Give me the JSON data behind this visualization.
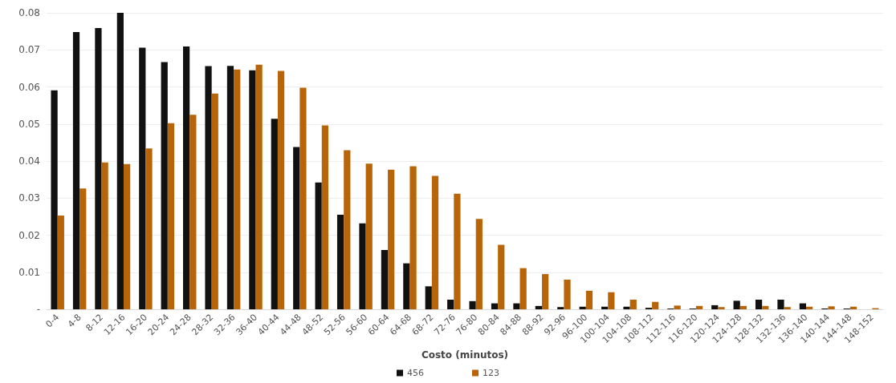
{
  "chart_data": {
    "type": "bar",
    "xlabel": "Costo (minutos)",
    "categories": [
      "0-4",
      "4-8",
      "8-12",
      "12-16",
      "16-20",
      "20-24",
      "24-28",
      "28-32",
      "32-36",
      "36-40",
      "40-44",
      "44-48",
      "48-52",
      "52-56",
      "56-60",
      "60-64",
      "64-68",
      "68-72",
      "72-76",
      "76-80",
      "80-84",
      "84-88",
      "88-92",
      "92-96",
      "96-100",
      "100-104",
      "104-108",
      "108-112",
      "112-116",
      "116-120",
      "120-124",
      "124-128",
      "128-132",
      "132-136",
      "136-140",
      "140-144",
      "144-148",
      "148-152"
    ],
    "series": [
      {
        "name": "456",
        "color": "#111111",
        "values": [
          0.0591,
          0.0748,
          0.0759,
          0.08,
          0.0706,
          0.0667,
          0.0709,
          0.0656,
          0.0657,
          0.0645,
          0.0514,
          0.0438,
          0.0342,
          0.0255,
          0.0232,
          0.016,
          0.0124,
          0.0062,
          0.0026,
          0.0022,
          0.0016,
          0.0016,
          0.0009,
          0.0006,
          0.0007,
          0.0007,
          0.0007,
          0.0004,
          0.0002,
          0.0002,
          0.0011,
          0.0023,
          0.0026,
          0.0026,
          0.0016,
          0.0002,
          0.0002,
          null
        ]
      },
      {
        "name": "123",
        "color": "#b8650a",
        "values": [
          0.0253,
          0.0326,
          0.0396,
          0.0392,
          0.0434,
          0.0502,
          0.0525,
          0.0582,
          0.0647,
          0.066,
          0.0643,
          0.0598,
          0.0496,
          0.0429,
          0.0393,
          0.0377,
          0.0386,
          0.036,
          0.0312,
          0.0244,
          0.0174,
          0.0111,
          0.0095,
          0.008,
          0.005,
          0.0046,
          0.0026,
          0.002,
          0.001,
          0.0009,
          0.0006,
          0.0009,
          0.0009,
          0.0006,
          0.0007,
          0.0008,
          0.0007,
          0.0003
        ]
      }
    ],
    "ylim": [
      0,
      0.08
    ],
    "yticks": [
      {
        "value": 0,
        "label": "-"
      },
      0.01,
      0.02,
      0.03,
      0.04,
      0.05,
      0.06,
      0.07,
      0.08
    ],
    "grid": "y",
    "legend": "bottom"
  }
}
